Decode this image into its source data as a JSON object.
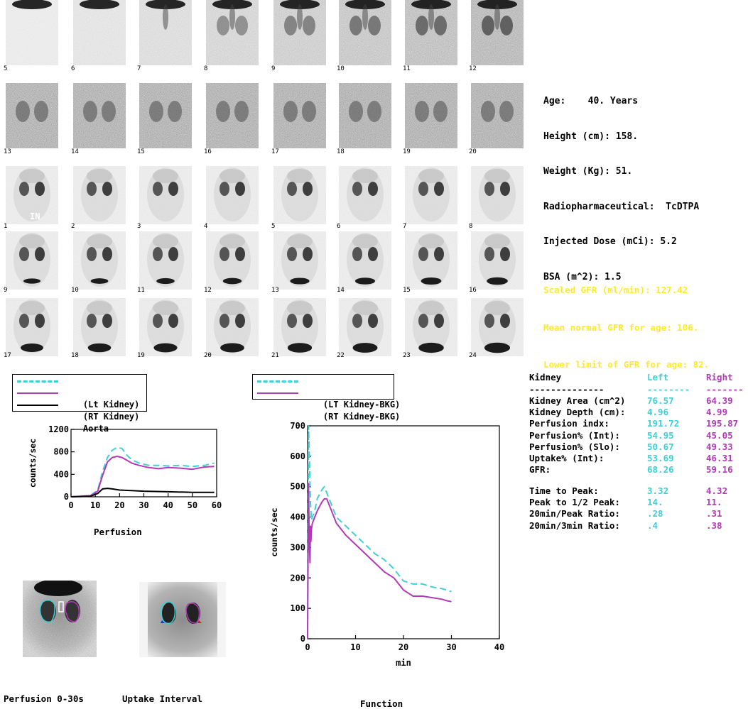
{
  "patient": {
    "age_line": "Age:    40. Years",
    "height_line": "Height (cm): 158.",
    "weight_line": "Weight (Kg): 51.",
    "radio_line": "Radiopharmaceutical:  TcDTPA",
    "dose_line": "Injected Dose (mCi): 5.2",
    "bsa_line": "BSA (m^2): 1.5"
  },
  "gfr_summary": {
    "scaled": "Scaled GFR (ml/min): 127.42",
    "mean_normal": "Mean normal GFR for age: 106.",
    "lower_limit": "Lower limit of GFR for age: 82."
  },
  "frames": {
    "row1": [
      "5",
      "6",
      "7",
      "8",
      "9",
      "10",
      "11",
      "12"
    ],
    "row2": [
      "13",
      "14",
      "15",
      "16",
      "17",
      "18",
      "19",
      "20"
    ],
    "row3": [
      "1",
      "2",
      "3",
      "4",
      "5",
      "6",
      "7",
      "8"
    ],
    "row4": [
      "9",
      "10",
      "11",
      "12",
      "13",
      "14",
      "15",
      "16"
    ],
    "row5": [
      "17",
      "18",
      "19",
      "20",
      "21",
      "22",
      "23",
      "24"
    ]
  },
  "overlay_text": "IN",
  "colors": {
    "left": "#3fcfd6",
    "right": "#b23ab8",
    "aorta": "#000000",
    "gfr_text": "#ffea2a",
    "bg": "#ffffff"
  },
  "captions": {
    "perfusion": "Perfusion",
    "function": "Function",
    "perfusion_img": "Perfusion 0-30s",
    "uptake_img": "Uptake Interval"
  },
  "table": {
    "header": {
      "label": "Kidney",
      "left": "Left",
      "right": "Right"
    },
    "divider": {
      "label": "--------------",
      "left": "--------",
      "right": "-------"
    },
    "rows": [
      {
        "label": "Kidney Area (cm^2)",
        "left": "76.57",
        "right": "64.39"
      },
      {
        "label": "Kidney Depth (cm):",
        "left": "4.96",
        "right": "4.99"
      },
      {
        "label": "Perfusion indx:",
        "left": "191.72",
        "right": "195.87"
      },
      {
        "label": "Perfusion% (Int):",
        "left": "54.95",
        "right": "45.05"
      },
      {
        "label": "Perfusion% (Slo):",
        "left": "50.67",
        "right": "49.33"
      },
      {
        "label": "Uptake% (Int):",
        "left": "53.69",
        "right": "46.31"
      },
      {
        "label": "GFR:",
        "left": "68.26",
        "right": "59.16"
      }
    ],
    "rows2": [
      {
        "label": "Time to Peak:",
        "left": "3.32",
        "right": "4.32"
      },
      {
        "label": "Peak to 1/2 Peak:",
        "left": "14.",
        "right": "11."
      },
      {
        "label": "20min/Peak Ratio:",
        "left": ".28",
        "right": ".31"
      },
      {
        "label": "20min/3min Ratio:",
        "left": ".4",
        "right": ".38"
      }
    ]
  },
  "chart_data": [
    {
      "type": "line",
      "title": "Perfusion",
      "ylabel": "counts/sec",
      "xlim": [
        0,
        60
      ],
      "ylim": [
        0,
        1200
      ],
      "xticks": [
        "0",
        "10",
        "20",
        "30",
        "40",
        "50",
        "60"
      ],
      "yticks": [
        "0",
        "400",
        "800",
        "1200"
      ],
      "legend": [
        "(Lt Kidney)",
        "(RT Kidney)",
        "Aorta"
      ],
      "series": [
        {
          "name": "(Lt Kidney)",
          "style": "dashed",
          "color": "#3fcfd6",
          "x": [
            0,
            8,
            11,
            13,
            15,
            17,
            19,
            21,
            23,
            25,
            28,
            32,
            36,
            40,
            45,
            50,
            55,
            59
          ],
          "y": [
            0,
            20,
            120,
            450,
            700,
            830,
            880,
            860,
            740,
            660,
            600,
            560,
            560,
            550,
            560,
            540,
            560,
            600
          ]
        },
        {
          "name": "(RT Kidney)",
          "style": "solid",
          "color": "#b23ab8",
          "x": [
            0,
            8,
            11,
            13,
            15,
            17,
            19,
            21,
            23,
            25,
            28,
            32,
            36,
            40,
            45,
            50,
            55,
            59
          ],
          "y": [
            0,
            20,
            100,
            380,
            620,
            700,
            720,
            700,
            650,
            600,
            560,
            520,
            500,
            520,
            510,
            490,
            530,
            540
          ]
        },
        {
          "name": "Aorta",
          "style": "solid",
          "color": "#000000",
          "x": [
            0,
            8,
            11,
            13,
            15,
            17,
            20,
            25,
            30,
            40,
            50,
            59
          ],
          "y": [
            0,
            10,
            60,
            140,
            150,
            140,
            120,
            110,
            100,
            90,
            80,
            80
          ]
        }
      ]
    },
    {
      "type": "line",
      "title": "Function",
      "xlabel": "min",
      "ylabel": "counts/sec",
      "xlim": [
        0,
        40
      ],
      "ylim": [
        0,
        700
      ],
      "xticks": [
        "0",
        "10",
        "20",
        "30",
        "40"
      ],
      "yticks": [
        "0",
        "100",
        "200",
        "300",
        "400",
        "500",
        "600",
        "700"
      ],
      "legend": [
        "(LT Kidney-BKG)",
        "(RT Kidney-BKG)"
      ],
      "series": [
        {
          "name": "(LT Kidney-BKG)",
          "style": "dashed",
          "color": "#3fcfd6",
          "x": [
            0,
            0.2,
            0.4,
            0.6,
            0.8,
            1.0,
            1.5,
            2,
            3,
            3.5,
            4,
            5,
            6,
            8,
            10,
            12,
            14,
            16,
            18,
            20,
            22,
            24,
            26,
            28,
            30
          ],
          "y": [
            0,
            700,
            580,
            450,
            390,
            400,
            420,
            460,
            490,
            500,
            480,
            440,
            400,
            370,
            340,
            310,
            280,
            260,
            230,
            190,
            180,
            180,
            170,
            165,
            155
          ]
        },
        {
          "name": "(RT Kidney-BKG)",
          "style": "solid",
          "color": "#b23ab8",
          "x": [
            0,
            0.2,
            0.3,
            0.4,
            0.5,
            0.6,
            0.7,
            0.8,
            1.0,
            1.5,
            2,
            3,
            3.5,
            4,
            5,
            6,
            8,
            10,
            12,
            14,
            16,
            18,
            20,
            21,
            22,
            24,
            26,
            28,
            29,
            30
          ],
          "y": [
            0,
            510,
            380,
            300,
            250,
            370,
            320,
            360,
            380,
            400,
            420,
            450,
            460,
            460,
            420,
            380,
            340,
            310,
            280,
            250,
            220,
            200,
            160,
            150,
            140,
            140,
            135,
            130,
            125,
            122
          ]
        }
      ]
    }
  ]
}
